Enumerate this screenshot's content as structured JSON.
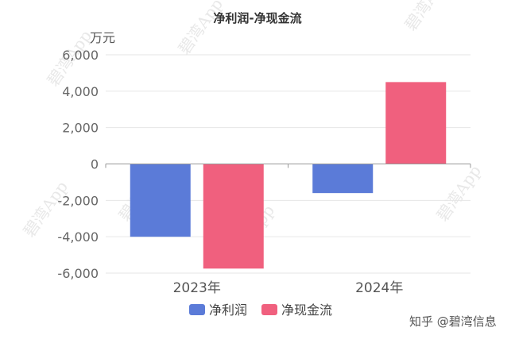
{
  "chart_data": {
    "type": "bar",
    "title": "净利润-净现金流",
    "unit_label": "万元",
    "categories": [
      "2023年",
      "2024年"
    ],
    "series": [
      {
        "name": "净利润",
        "color": "#5b7bd8",
        "values": [
          -4000,
          -1600
        ]
      },
      {
        "name": "净现金流",
        "color": "#f0607e",
        "values": [
          -5750,
          4500
        ]
      }
    ],
    "ylim": [
      -6000,
      6000
    ],
    "yticks": [
      6000,
      4000,
      2000,
      0,
      -2000,
      -4000,
      -6000
    ],
    "ytick_labels": [
      "6,000",
      "4,000",
      "2,000",
      "0",
      "-2,000",
      "-4,000",
      "-6,000"
    ],
    "grid": true,
    "legend_position": "bottom-center"
  },
  "watermark_text": "碧湾App",
  "brand_text": "知乎 @碧湾信息"
}
